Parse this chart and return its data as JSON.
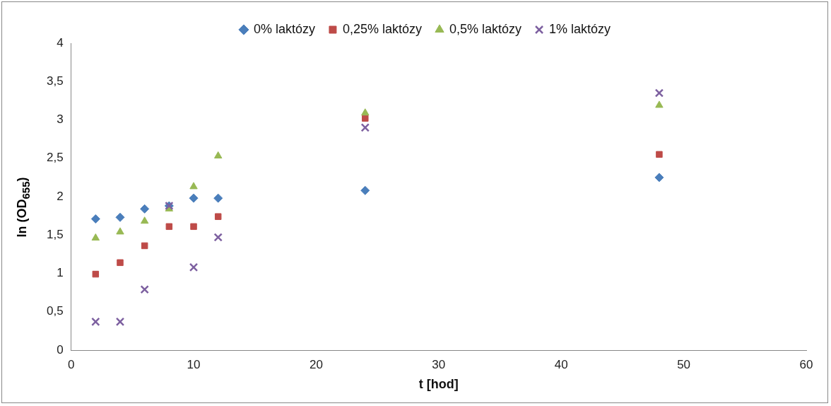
{
  "chart_data": {
    "type": "scatter",
    "xlabel": "t [hod]",
    "ylabel": "ln (OD$_{655}$)",
    "legend": "top",
    "grid": false,
    "x": [
      2,
      4,
      6,
      8,
      10,
      12,
      24,
      48
    ],
    "series": [
      {
        "name": "0% laktózy",
        "color": "#4a7ebb",
        "marker": "diamond",
        "values": [
          1.71,
          1.73,
          1.84,
          1.88,
          1.98,
          1.98,
          2.08,
          2.25
        ]
      },
      {
        "name": "0,25% laktózy",
        "color": "#be4b48",
        "marker": "square",
        "values": [
          0.99,
          1.14,
          1.36,
          1.61,
          1.61,
          1.74,
          3.02,
          2.55
        ]
      },
      {
        "name": "0,5% laktózy",
        "color": "#98b954",
        "marker": "triangle",
        "values": [
          1.46,
          1.54,
          1.68,
          1.84,
          2.13,
          2.53,
          3.09,
          3.19
        ]
      },
      {
        "name": "1% laktózy",
        "color": "#7d60a0",
        "marker": "cross",
        "values": [
          0.37,
          0.37,
          0.79,
          1.88,
          1.08,
          1.47,
          2.9,
          3.35
        ]
      }
    ],
    "xlim": [
      0,
      60
    ],
    "xticks": [
      0,
      10,
      20,
      30,
      40,
      50,
      60
    ],
    "ylim": [
      0,
      4
    ],
    "yticks": [
      0,
      {
        "value": 0.5,
        "label": "0,5"
      },
      1,
      {
        "value": 1.5,
        "label": "1,5"
      },
      2,
      {
        "value": 2.5,
        "label": "2,5"
      },
      3,
      {
        "value": 3.5,
        "label": "3,5"
      },
      4
    ]
  }
}
